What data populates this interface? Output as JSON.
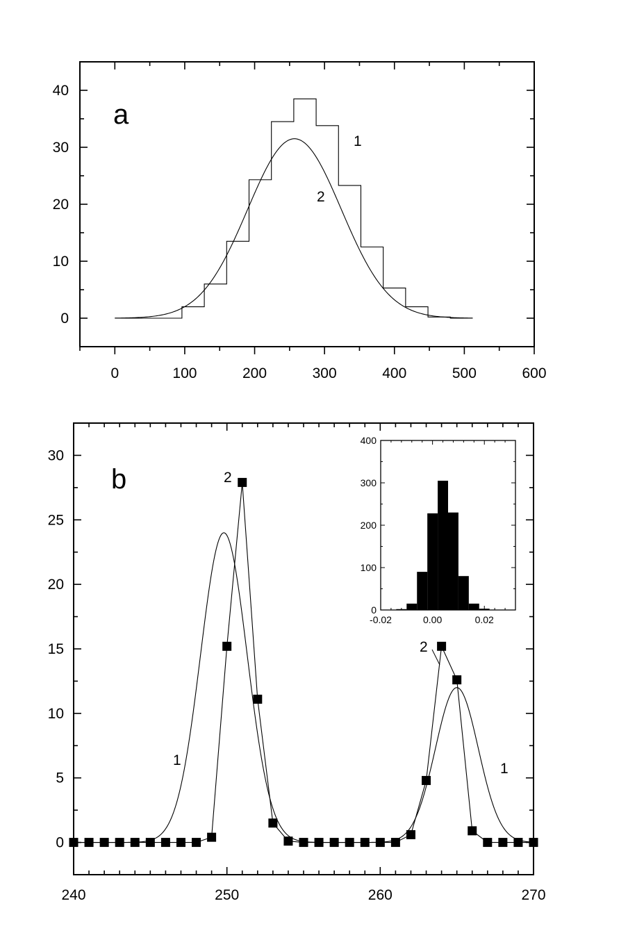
{
  "chart_data": [
    {
      "type": "line",
      "panel_label": "a",
      "xlim": [
        -50,
        600
      ],
      "ylim": [
        -5,
        45
      ],
      "x_ticks": [
        0,
        100,
        200,
        300,
        400,
        500,
        600
      ],
      "y_ticks": [
        0,
        10,
        20,
        30,
        40
      ],
      "series": [
        {
          "name": "1",
          "style": "step histogram",
          "bin_edges": [
            0,
            96,
            128,
            160,
            192,
            224,
            256,
            288,
            320,
            352,
            384,
            416,
            448,
            480,
            512
          ],
          "values": [
            0,
            2,
            6,
            13.5,
            24.3,
            34.5,
            38.5,
            33.8,
            23.3,
            12.5,
            5.3,
            2,
            0.2,
            0
          ]
        },
        {
          "name": "2",
          "style": "smooth curve (gaussian fit)",
          "mean": 257,
          "sigma": 67,
          "peak": 31.5,
          "x_range": [
            0,
            512
          ]
        }
      ]
    },
    {
      "type": "line",
      "panel_label": "b",
      "xlim": [
        240,
        270
      ],
      "ylim": [
        -2.5,
        32.5
      ],
      "x_ticks": [
        240,
        250,
        260,
        270
      ],
      "y_ticks": [
        0,
        5,
        10,
        15,
        20,
        25,
        30
      ],
      "series": [
        {
          "name": "1",
          "style": "smooth curve (two gaussian peaks)",
          "peaks": [
            {
              "center": 249.8,
              "sigma": 1.52,
              "height": 24.0
            },
            {
              "center": 265.0,
              "sigma": 1.4,
              "height": 12.0
            }
          ]
        },
        {
          "name": "2",
          "style": "square markers connected by lines",
          "x": [
            240,
            241,
            242,
            243,
            244,
            245,
            246,
            247,
            248,
            249,
            250,
            251,
            252,
            253,
            254,
            255,
            256,
            257,
            258,
            259,
            260,
            261,
            262,
            263,
            264,
            265,
            266,
            267,
            268,
            269,
            270
          ],
          "y": [
            0,
            0,
            0,
            0,
            0,
            0,
            0,
            0,
            0,
            0.4,
            15.2,
            27.9,
            11.1,
            1.5,
            0.1,
            0,
            0,
            0,
            0,
            0,
            0,
            0,
            0.6,
            4.8,
            15.2,
            12.6,
            0.9,
            0,
            0,
            0,
            0
          ]
        }
      ],
      "inset": {
        "type": "bar",
        "xlim": [
          -0.02,
          0.032
        ],
        "ylim": [
          0,
          400
        ],
        "x_ticks": [
          -0.02,
          0.0,
          0.02
        ],
        "x_tick_labels": [
          "-0.02",
          "0.00",
          "0.02"
        ],
        "y_ticks": [
          0,
          100,
          200,
          300,
          400
        ],
        "bin_edges": [
          -0.014,
          -0.01,
          -0.006,
          -0.002,
          0.002,
          0.006,
          0.01,
          0.014,
          0.018,
          0.022
        ],
        "values": [
          2,
          15,
          90,
          228,
          305,
          230,
          80,
          15,
          3
        ]
      }
    }
  ]
}
